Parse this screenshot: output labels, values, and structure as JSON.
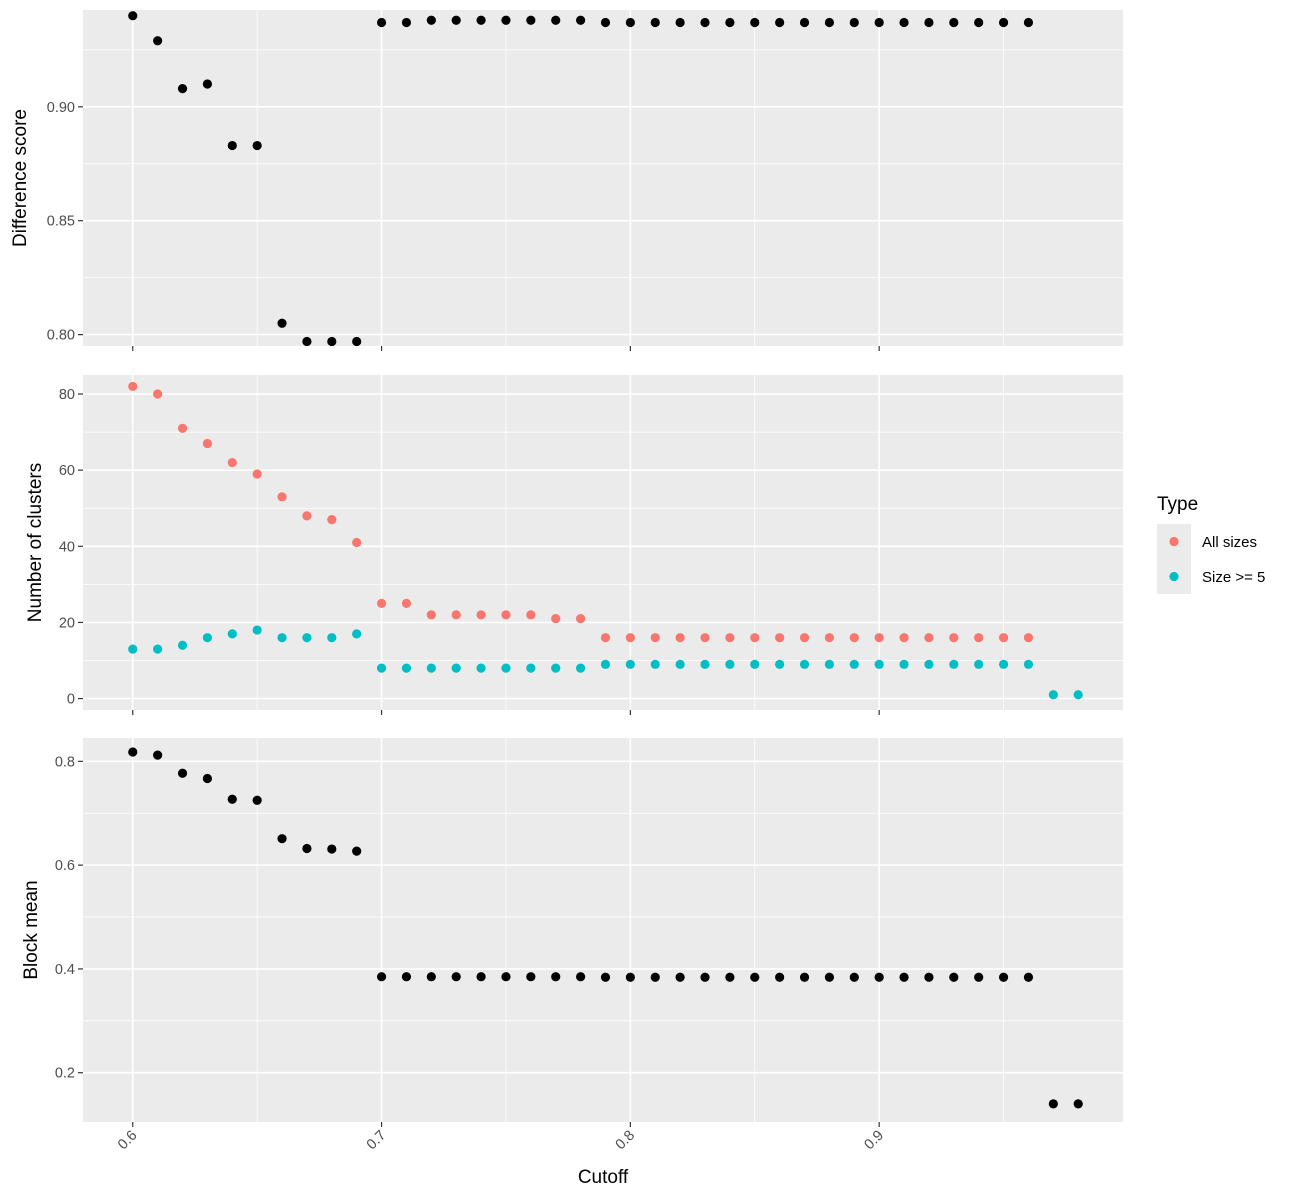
{
  "chart_data": {
    "type": "scatter",
    "x_label": "Cutoff",
    "x_range": [
      0.58,
      0.998
    ],
    "x_breaks": [
      0.6,
      0.7,
      0.8,
      0.9
    ],
    "x_tick_labels": [
      "0.6",
      "0.7",
      "0.8",
      "0.9"
    ],
    "grid": true,
    "legend": {
      "title": "Type",
      "placement": "right",
      "entries": [
        {
          "label": "All sizes",
          "color": "#F8766D"
        },
        {
          "label": "Size >= 5",
          "color": "#00BFC4"
        }
      ]
    },
    "panels": [
      {
        "ylabel": "Difference score",
        "y_range": [
          0.795,
          0.9425
        ],
        "y_breaks": [
          0.8,
          0.85,
          0.9
        ],
        "y_tick_labels": [
          "0.80",
          "0.85",
          "0.90"
        ],
        "series": [
          {
            "color": "#000000",
            "x": [
              0.6,
              0.61,
              0.62,
              0.63,
              0.64,
              0.65,
              0.66,
              0.67,
              0.68,
              0.69,
              0.7,
              0.71,
              0.72,
              0.73,
              0.74,
              0.75,
              0.76,
              0.77,
              0.78,
              0.79,
              0.8,
              0.81,
              0.82,
              0.83,
              0.84,
              0.85,
              0.86,
              0.87,
              0.88,
              0.89,
              0.9,
              0.91,
              0.92,
              0.93,
              0.94,
              0.95,
              0.96
            ],
            "y": [
              0.94,
              0.929,
              0.908,
              0.91,
              0.883,
              0.883,
              0.805,
              0.797,
              0.797,
              0.797,
              0.937,
              0.937,
              0.938,
              0.938,
              0.938,
              0.938,
              0.938,
              0.938,
              0.938,
              0.937,
              0.937,
              0.937,
              0.937,
              0.937,
              0.937,
              0.937,
              0.937,
              0.937,
              0.937,
              0.937,
              0.937,
              0.937,
              0.937,
              0.937,
              0.937,
              0.937,
              0.937
            ]
          }
        ]
      },
      {
        "ylabel": "Number of clusters",
        "y_range": [
          -3,
          85
        ],
        "y_breaks": [
          0,
          20,
          40,
          60,
          80
        ],
        "y_tick_labels": [
          "0",
          "20",
          "40",
          "60",
          "80"
        ],
        "series": [
          {
            "name": "All sizes",
            "color": "#F8766D",
            "x": [
              0.6,
              0.61,
              0.62,
              0.63,
              0.64,
              0.65,
              0.66,
              0.67,
              0.68,
              0.69,
              0.7,
              0.71,
              0.72,
              0.73,
              0.74,
              0.75,
              0.76,
              0.77,
              0.78,
              0.79,
              0.8,
              0.81,
              0.82,
              0.83,
              0.84,
              0.85,
              0.86,
              0.87,
              0.88,
              0.89,
              0.9,
              0.91,
              0.92,
              0.93,
              0.94,
              0.95,
              0.96
            ],
            "y": [
              82,
              80,
              71,
              67,
              62,
              59,
              53,
              48,
              47,
              41,
              25,
              25,
              22,
              22,
              22,
              22,
              22,
              21,
              21,
              16,
              16,
              16,
              16,
              16,
              16,
              16,
              16,
              16,
              16,
              16,
              16,
              16,
              16,
              16,
              16,
              16,
              16
            ]
          },
          {
            "name": "Size >= 5",
            "color": "#00BFC4",
            "x": [
              0.6,
              0.61,
              0.62,
              0.63,
              0.64,
              0.65,
              0.66,
              0.67,
              0.68,
              0.69,
              0.7,
              0.71,
              0.72,
              0.73,
              0.74,
              0.75,
              0.76,
              0.77,
              0.78,
              0.79,
              0.8,
              0.81,
              0.82,
              0.83,
              0.84,
              0.85,
              0.86,
              0.87,
              0.88,
              0.89,
              0.9,
              0.91,
              0.92,
              0.93,
              0.94,
              0.95,
              0.96,
              0.97,
              0.98
            ],
            "y": [
              13,
              13,
              14,
              16,
              17,
              18,
              16,
              16,
              16,
              17,
              8,
              8,
              8,
              8,
              8,
              8,
              8,
              8,
              8,
              9,
              9,
              9,
              9,
              9,
              9,
              9,
              9,
              9,
              9,
              9,
              9,
              9,
              9,
              9,
              9,
              9,
              9,
              1,
              1
            ]
          }
        ]
      },
      {
        "ylabel": "Block mean",
        "y_range": [
          0.105,
          0.845
        ],
        "y_breaks": [
          0.2,
          0.4,
          0.6,
          0.8
        ],
        "y_tick_labels": [
          "0.2",
          "0.4",
          "0.6",
          "0.8"
        ],
        "series": [
          {
            "color": "#000000",
            "x": [
              0.6,
              0.61,
              0.62,
              0.63,
              0.64,
              0.65,
              0.66,
              0.67,
              0.68,
              0.69,
              0.7,
              0.71,
              0.72,
              0.73,
              0.74,
              0.75,
              0.76,
              0.77,
              0.78,
              0.79,
              0.8,
              0.81,
              0.82,
              0.83,
              0.84,
              0.85,
              0.86,
              0.87,
              0.88,
              0.89,
              0.9,
              0.91,
              0.92,
              0.93,
              0.94,
              0.95,
              0.96,
              0.97,
              0.98
            ],
            "y": [
              0.818,
              0.812,
              0.777,
              0.767,
              0.727,
              0.725,
              0.651,
              0.632,
              0.631,
              0.627,
              0.385,
              0.385,
              0.385,
              0.385,
              0.385,
              0.385,
              0.385,
              0.385,
              0.385,
              0.384,
              0.384,
              0.384,
              0.384,
              0.384,
              0.384,
              0.384,
              0.384,
              0.384,
              0.384,
              0.384,
              0.384,
              0.384,
              0.384,
              0.384,
              0.384,
              0.384,
              0.384,
              0.14,
              0.14
            ]
          }
        ]
      }
    ]
  }
}
